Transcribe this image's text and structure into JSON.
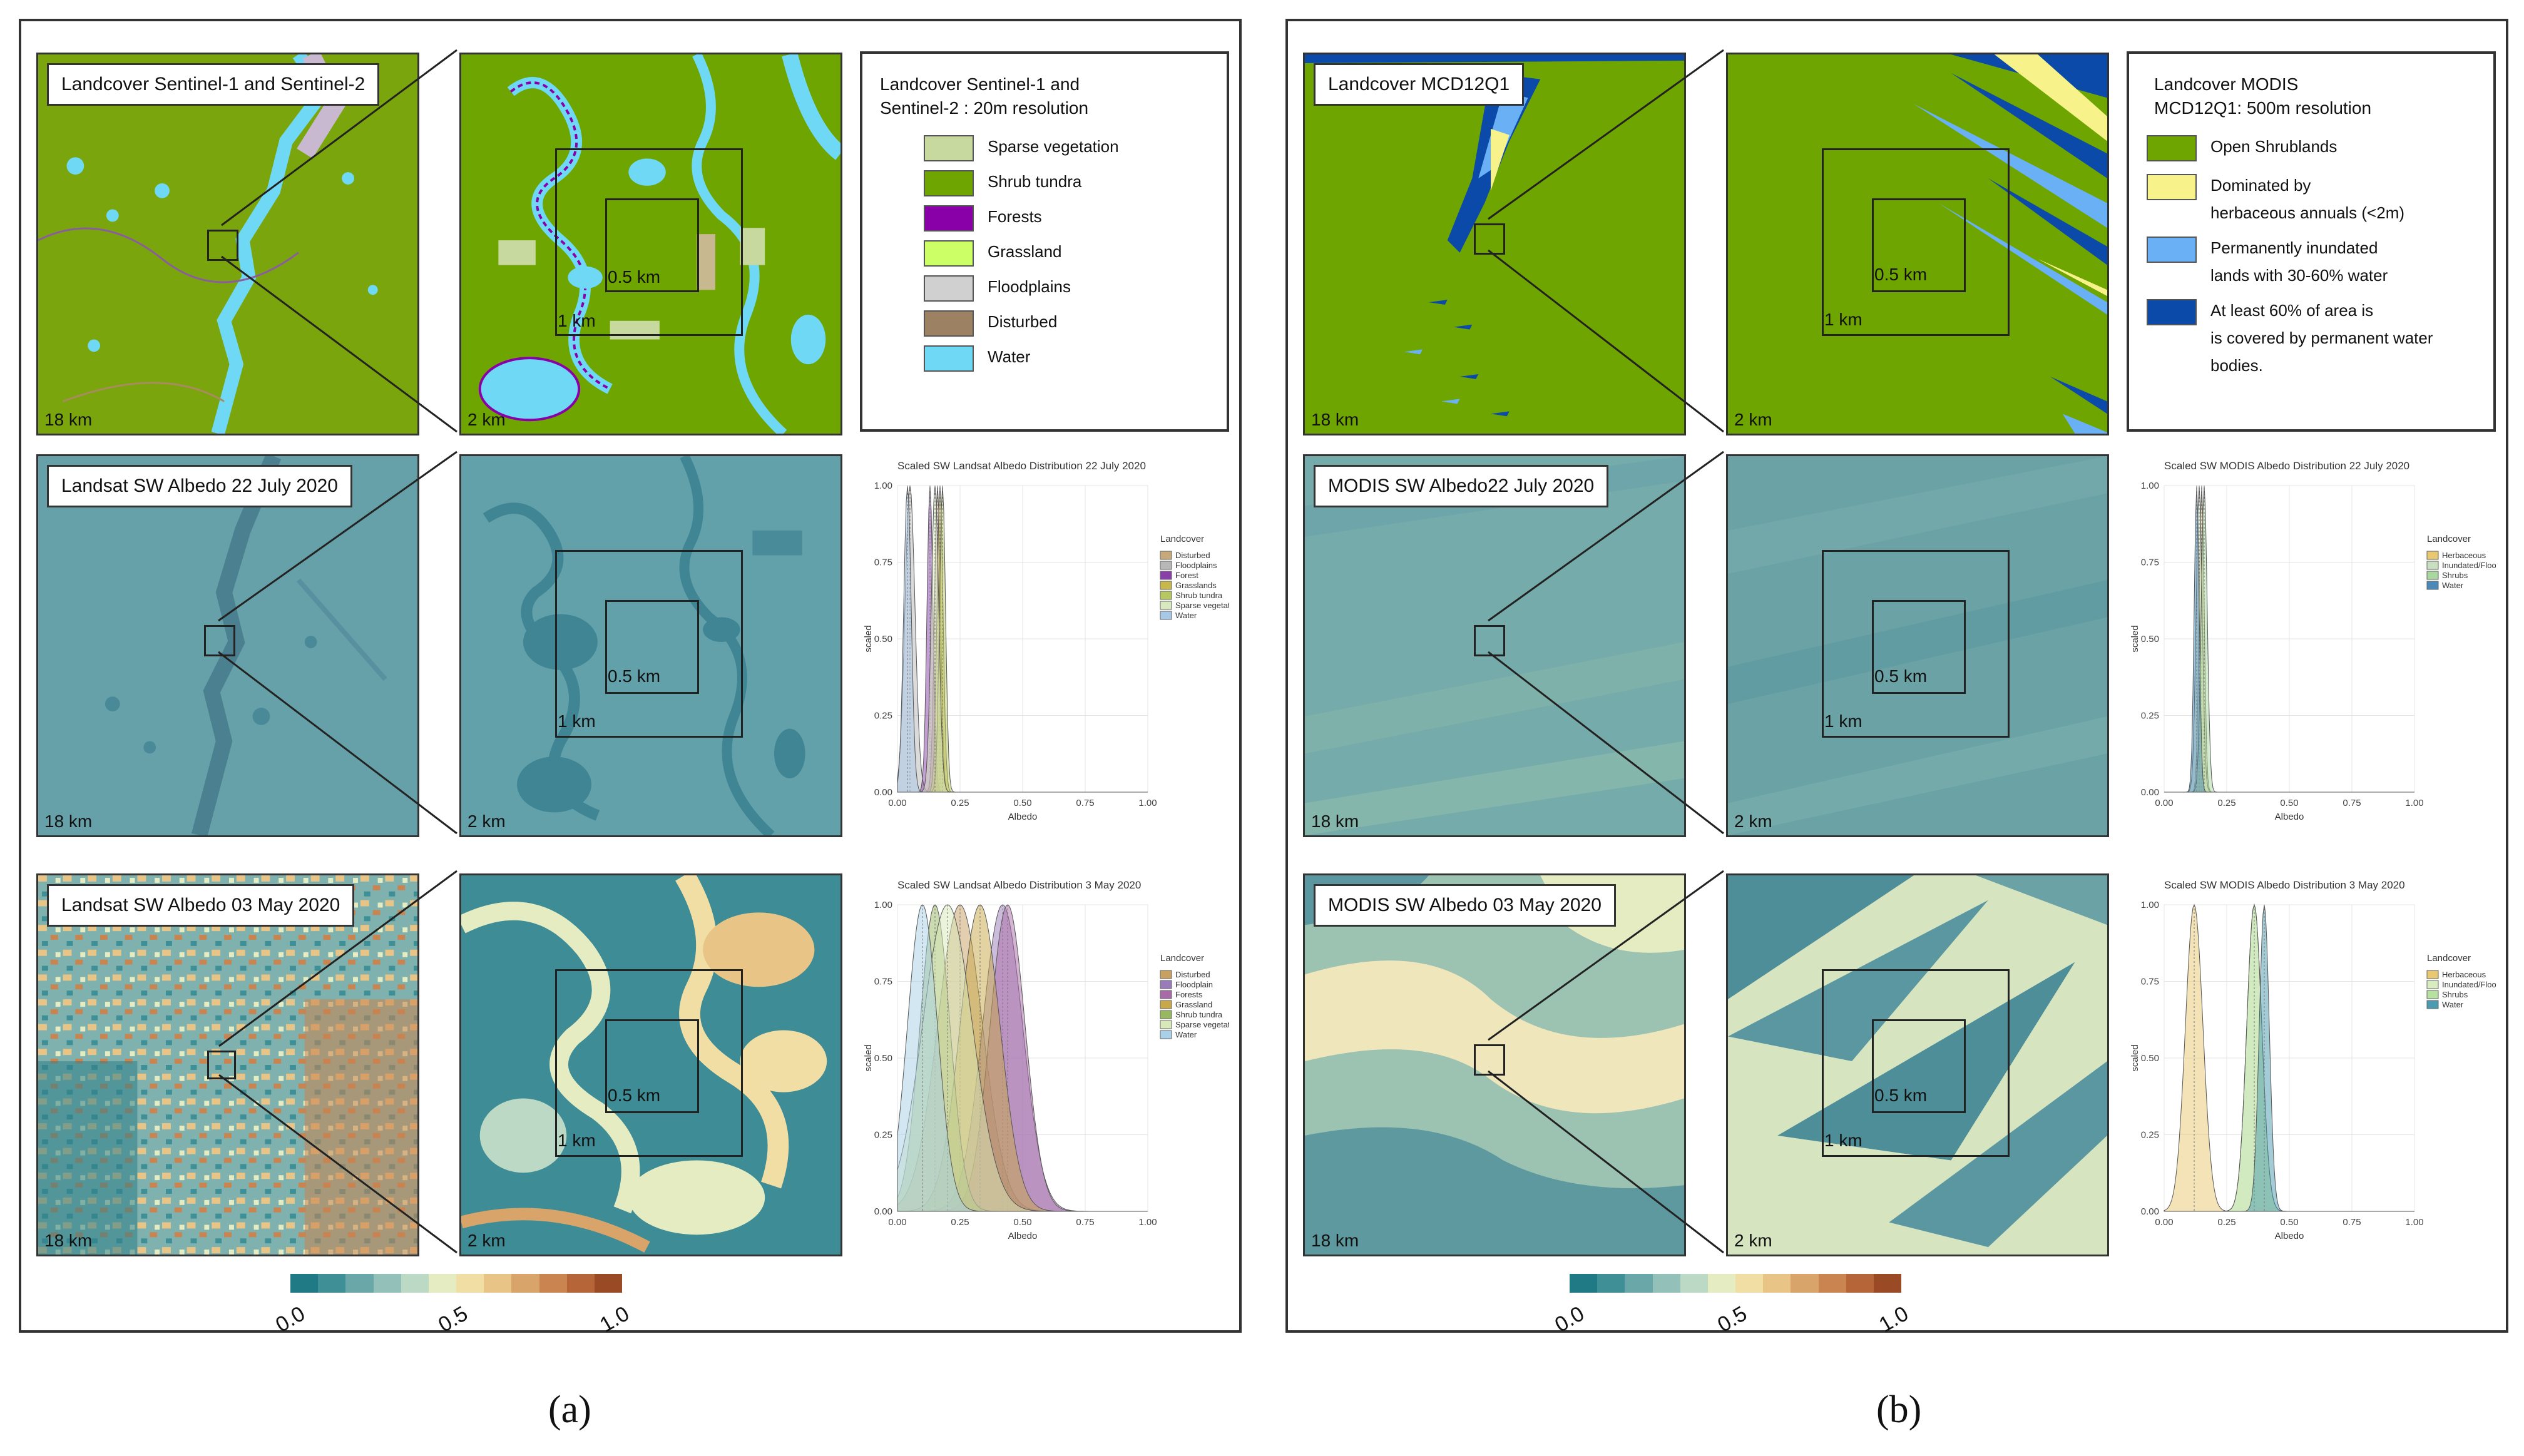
{
  "panel_a": {
    "row1": {
      "title": "Landcover Sentinel-1 and Sentinel-2",
      "scale_large": "18 km",
      "scale_zoom": "2 km",
      "box_outer": "1 km",
      "box_inner": "0.5 km"
    },
    "legend": {
      "title_line1": "Landcover Sentinel-1 and",
      "title_line2": "Sentinel-2 : 20m resolution",
      "items": [
        {
          "label": "Sparse vegetation",
          "color": "#c8d9a0"
        },
        {
          "label": "Shrub tundra",
          "color": "#6fa500"
        },
        {
          "label": "Forests",
          "color": "#8a00a8"
        },
        {
          "label": "Grassland",
          "color": "#ccff66"
        },
        {
          "label": "Floodplains",
          "color": "#d0d0d0"
        },
        {
          "label": "Disturbed",
          "color": "#9c8263"
        },
        {
          "label": "Water",
          "color": "#6fd8f5"
        }
      ]
    },
    "row2": {
      "title": "Landsat SW Albedo 22 July 2020",
      "scale_large": "18 km",
      "scale_zoom": "2 km",
      "box_outer": "1 km",
      "box_inner": "0.5 km"
    },
    "row3": {
      "title": "Landsat SW Albedo 03 May 2020",
      "scale_large": "18 km",
      "scale_zoom": "2 km",
      "box_outer": "1 km",
      "box_inner": "0.5 km"
    },
    "colorbar": {
      "min": "0.0",
      "mid": "0.5",
      "max": "1.0"
    },
    "fig_label": "(a)"
  },
  "panel_b": {
    "row1": {
      "title": "Landcover MCD12Q1",
      "scale_large": "18 km",
      "scale_zoom": "2 km",
      "box_outer": "1 km",
      "box_inner": "0.5 km"
    },
    "legend": {
      "title_line1": "Landcover MODIS",
      "title_line2": "MCD12Q1:  500m resolution",
      "items": [
        {
          "label": "Open Shrublands",
          "label2": "",
          "color": "#6fa500"
        },
        {
          "label": "Dominated by",
          "label2": "herbaceous annuals (<2m)",
          "color": "#f7f38a"
        },
        {
          "label": "Permanently inundated",
          "label2": "lands with 30-60% water",
          "color": "#6ab0f5"
        },
        {
          "label": "At least 60% of area is",
          "label2": "is covered by permanent water",
          "label3": "bodies.",
          "color": "#0b4aa8"
        }
      ]
    },
    "row2": {
      "title": "MODIS SW Albedo22 July 2020",
      "scale_large": "18 km",
      "scale_zoom": "2 km",
      "box_outer": "1 km",
      "box_inner": "0.5 km"
    },
    "row3": {
      "title": "MODIS SW Albedo 03 May 2020",
      "scale_large": "18 km",
      "scale_zoom": "2 km",
      "box_outer": "1 km",
      "box_inner": "0.5 km"
    },
    "colorbar": {
      "min": "0.0",
      "mid": "0.5",
      "max": "1.0"
    },
    "fig_label": "(b)"
  },
  "colorbar_colors": [
    "#1f7a86",
    "#3f8f97",
    "#6aa7a9",
    "#93c0b9",
    "#bcd9c6",
    "#e6ecc2",
    "#f1dea4",
    "#e8c486",
    "#d9a46a",
    "#c98450",
    "#b66538",
    "#9a4a24"
  ],
  "chart_data": [
    {
      "type": "area",
      "id": "landsat_july",
      "title": "Scaled SW Landsat Albedo Distribution 22 July 2020",
      "xlabel": "Albedo",
      "ylabel": "scaled",
      "xlim": [
        0,
        1
      ],
      "ylim": [
        0,
        1
      ],
      "xticks": [
        "0.00",
        "0.25",
        "0.50",
        "0.75",
        "1.00"
      ],
      "yticks": [
        "0.00",
        "0.25",
        "0.50",
        "0.75",
        "1.00"
      ],
      "legend_title": "Landcover",
      "legend_position": "right",
      "series": [
        {
          "name": "Disturbed",
          "color": "#c8a97a",
          "peak": 0.16,
          "width": 0.012
        },
        {
          "name": "Floodplains",
          "color": "#b8b8b8",
          "peak": 0.05,
          "width": 0.02
        },
        {
          "name": "Forest",
          "color": "#8a3fa8",
          "peak": 0.13,
          "width": 0.012
        },
        {
          "name": "Grasslands",
          "color": "#c8b84a",
          "peak": 0.17,
          "width": 0.012
        },
        {
          "name": "Shrub tundra",
          "color": "#b8c860",
          "peak": 0.18,
          "width": 0.012
        },
        {
          "name": "Sparse vegetation",
          "color": "#d8e8c0",
          "peak": 0.15,
          "width": 0.015
        },
        {
          "name": "Water",
          "color": "#a8c8e8",
          "peak": 0.04,
          "width": 0.015
        }
      ]
    },
    {
      "type": "area",
      "id": "landsat_may",
      "title": "Scaled SW Landsat Albedo Distribution 3 May 2020",
      "xlabel": "Albedo",
      "ylabel": "scaled",
      "xlim": [
        0,
        1
      ],
      "ylim": [
        0,
        1
      ],
      "xticks": [
        "0.00",
        "0.25",
        "0.50",
        "0.75",
        "1.00"
      ],
      "yticks": [
        "0.00",
        "0.25",
        "0.50",
        "0.75",
        "1.00"
      ],
      "legend_title": "Landcover",
      "legend_position": "right",
      "series": [
        {
          "name": "Disturbed",
          "color": "#c8a060",
          "peak": 0.25,
          "width": 0.09
        },
        {
          "name": "Floodplain",
          "color": "#9a7ab8",
          "peak": 0.42,
          "width": 0.08
        },
        {
          "name": "Forests",
          "color": "#a86aa8",
          "peak": 0.44,
          "width": 0.07
        },
        {
          "name": "Grassland",
          "color": "#c8a848",
          "peak": 0.33,
          "width": 0.08
        },
        {
          "name": "Shrub tundra",
          "color": "#98b860",
          "peak": 0.15,
          "width": 0.06
        },
        {
          "name": "Sparse vegetation",
          "color": "#d8e8b8",
          "peak": 0.2,
          "width": 0.1
        },
        {
          "name": "Water",
          "color": "#a8d0e8",
          "peak": 0.1,
          "width": 0.06
        }
      ]
    },
    {
      "type": "area",
      "id": "modis_july",
      "title": "Scaled SW MODIS Albedo Distribution 22 July 2020",
      "xlabel": "Albedo",
      "ylabel": "scaled",
      "xlim": [
        0,
        1
      ],
      "ylim": [
        0,
        1
      ],
      "xticks": [
        "0.00",
        "0.25",
        "0.50",
        "0.75",
        "1.00"
      ],
      "yticks": [
        "0.00",
        "0.25",
        "0.50",
        "0.75",
        "1.00"
      ],
      "legend_title": "Landcover",
      "legend_position": "right",
      "series": [
        {
          "name": "Herbaceous",
          "color": "#e8c870",
          "peak": 0.15,
          "width": 0.01
        },
        {
          "name": "Inundated/Flood",
          "color": "#c8e0c0",
          "peak": 0.14,
          "width": 0.012
        },
        {
          "name": "Shrubs",
          "color": "#a8d8a0",
          "peak": 0.16,
          "width": 0.012
        },
        {
          "name": "Water",
          "color": "#4a8ab8",
          "peak": 0.13,
          "width": 0.01
        }
      ]
    },
    {
      "type": "area",
      "id": "modis_may",
      "title": "Scaled SW MODIS Albedo Distribution 3 May 2020",
      "xlabel": "Albedo",
      "ylabel": "scaled",
      "xlim": [
        0,
        1
      ],
      "ylim": [
        0,
        1
      ],
      "xticks": [
        "0.00",
        "0.25",
        "0.50",
        "0.75",
        "1.00"
      ],
      "yticks": [
        "0.00",
        "0.25",
        "0.50",
        "0.75",
        "1.00"
      ],
      "legend_title": "Landcover",
      "legend_position": "right",
      "series": [
        {
          "name": "Herbaceous",
          "color": "#e8c870",
          "peak": 0.12,
          "width": 0.035
        },
        {
          "name": "Inundated/Flood",
          "color": "#d8ecc0",
          "peak": 0.36,
          "width": 0.03
        },
        {
          "name": "Shrubs",
          "color": "#b8e0a0",
          "peak": 0.36,
          "width": 0.03
        },
        {
          "name": "Water",
          "color": "#4a9ab0",
          "peak": 0.4,
          "width": 0.02
        }
      ]
    }
  ]
}
